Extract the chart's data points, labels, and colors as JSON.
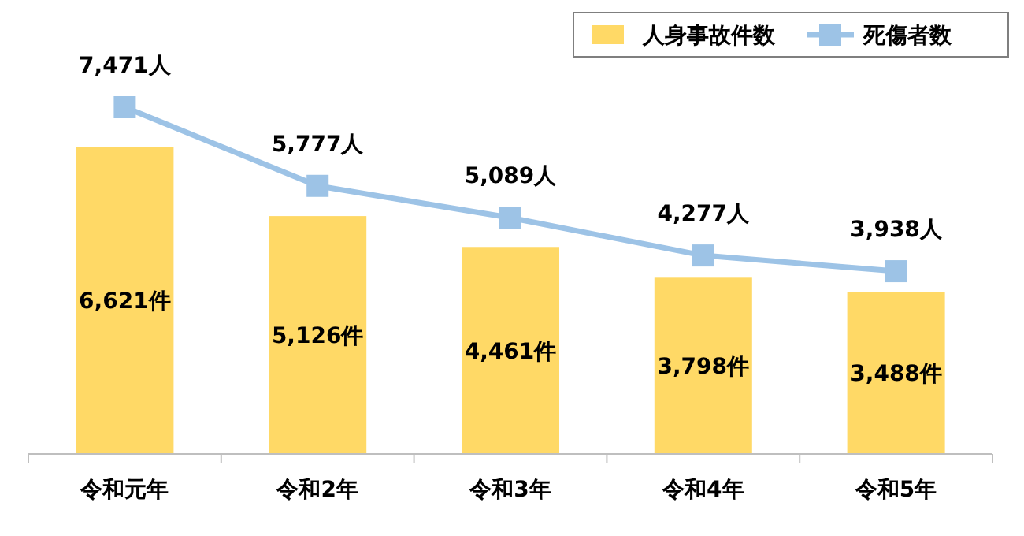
{
  "chart_data": {
    "type": "bar",
    "categories": [
      "令和元年",
      "令和2年",
      "令和3年",
      "令和4年",
      "令和5年"
    ],
    "series": [
      {
        "name": "人身事故件数",
        "color": "#ffd966",
        "values": [
          6621,
          5126,
          4461,
          3798,
          3488
        ],
        "value_labels": [
          "6,621件",
          "5,126件",
          "4,461件",
          "3,798件",
          "3,488件"
        ]
      },
      {
        "name": "死傷者数",
        "type": "line",
        "color": "#9dc3e6",
        "values": [
          7471,
          5777,
          5089,
          4277,
          3938
        ],
        "value_labels": [
          "7,471人",
          "5,777人",
          "5,089人",
          "4,277人",
          "3,938人"
        ]
      }
    ],
    "tick_labels": "x",
    "legend": "top right",
    "marker": "square",
    "line_style": "solid"
  }
}
